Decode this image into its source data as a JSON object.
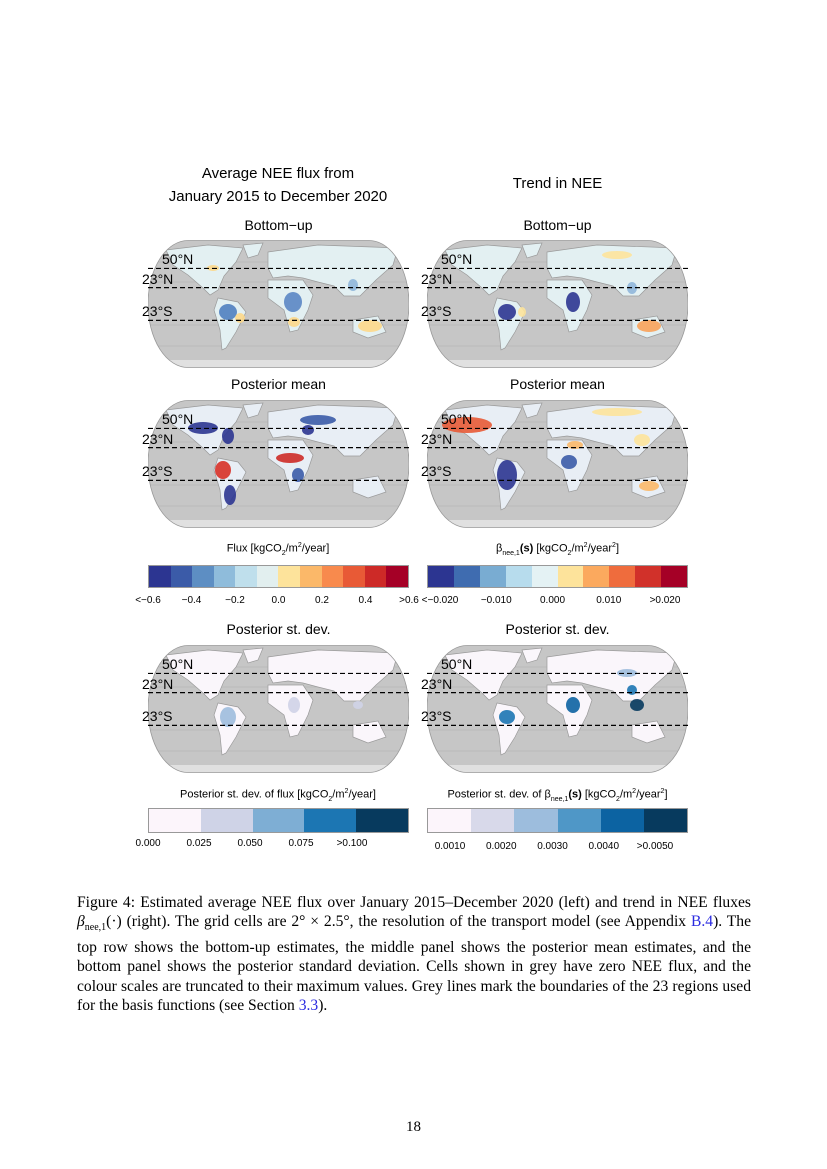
{
  "figure": {
    "left_title": [
      "Average NEE flux from",
      "January 2015 to December 2020"
    ],
    "right_title": "Trend in NEE",
    "panels": [
      {
        "title": "Bottom−up",
        "lat_labels": [
          "50°N",
          "23°N",
          "23°S"
        ]
      },
      {
        "title": "Bottom−up",
        "lat_labels": [
          "50°N",
          "23°N",
          "23°S"
        ]
      },
      {
        "title": "Posterior mean",
        "lat_labels": [
          "50°N",
          "23°N",
          "23°S"
        ]
      },
      {
        "title": "Posterior mean",
        "lat_labels": [
          "50°N",
          "23°N",
          "23°S"
        ]
      },
      {
        "title": "Posterior st. dev.",
        "lat_labels": [
          "50°N",
          "23°N",
          "23°S"
        ]
      },
      {
        "title": "Posterior st. dev.",
        "lat_labels": [
          "50°N",
          "23°N",
          "23°S"
        ]
      }
    ],
    "colorbars": [
      {
        "label_pre": "Flux [kgCO",
        "label_sub": "2",
        "label_mid": "/m",
        "label_sup": "2",
        "label_post": "/year]",
        "ticks": [
          "<−0.6",
          "−0.4",
          "−0.2",
          "0.0",
          "0.2",
          "0.4",
          ">0.6"
        ],
        "colors": [
          "#2c3591",
          "#3b5ba8",
          "#5d8ec3",
          "#8fbcdb",
          "#bfdfec",
          "#e2efef",
          "#fde39b",
          "#fbb869",
          "#f88a4d",
          "#e85a36",
          "#cd2a27",
          "#a50026"
        ]
      },
      {
        "label_pre": "β",
        "label_sub0": "nee,1",
        "label_bold": "(s)",
        "label_pre2": " [kgCO",
        "label_sub": "2",
        "label_mid": "/m",
        "label_sup": "2",
        "label_post": "/year",
        "label_sup2": "2",
        "label_end": "]",
        "ticks": [
          "<−0.020",
          "−0.010",
          "0.000",
          "0.010",
          ">0.020"
        ],
        "colors": [
          "#2c3591",
          "#3f6cb0",
          "#79acd2",
          "#b7dced",
          "#e4f2f4",
          "#fde39b",
          "#fba95e",
          "#ef6c3d",
          "#d1312a",
          "#a50026"
        ]
      },
      {
        "label": "Posterior st. dev. of flux [kgCO",
        "label_sub": "2",
        "label_mid": "/m",
        "label_sup": "2",
        "label_post": "/year]",
        "ticks": [
          "0.000",
          "0.025",
          "0.050",
          "0.075",
          ">0.100"
        ],
        "colors": [
          "#fcf5fb",
          "#cfd3e7",
          "#7eaed4",
          "#1c76b3",
          "#073a5e"
        ]
      },
      {
        "label": "Posterior st. dev. of ",
        "label_beta": "β",
        "label_sub0": "nee,1",
        "label_bold": "(s)",
        "label_pre2": " [kgCO",
        "label_sub": "2",
        "label_mid": "/m",
        "label_sup": "2",
        "label_post": "/year",
        "label_sup2": "2",
        "label_end": "]",
        "ticks": [
          "0.0010",
          "0.0020",
          "0.0030",
          "0.0040",
          ">0.0050"
        ],
        "colors": [
          "#fcf5fb",
          "#d8d9ea",
          "#9dbddd",
          "#4f97c7",
          "#0c63a2",
          "#073a5e"
        ]
      }
    ]
  },
  "caption": {
    "label": "Figure 4:",
    "p1": "  Estimated average NEE flux over January 2015–December 2020 (left) and trend in NEE fluxes ",
    "beta": "β",
    "beta_sub": "nee,1",
    "p2": "(·) (right). The grid cells are 2° × 2.5°, the resolution of the transport model (see Appendix ",
    "ref1": "B.4",
    "p3": "). The top row shows the bottom-up estimates, the middle panel shows the posterior mean estimates, and the bottom panel shows the posterior standard deviation. Cells shown in grey have zero NEE flux, and the colour scales are truncated to their maximum values. Grey lines mark the boundaries of the 23 regions used for the basis functions (see Section ",
    "ref2": "3.3",
    "p4": ")."
  },
  "page_number": "18"
}
